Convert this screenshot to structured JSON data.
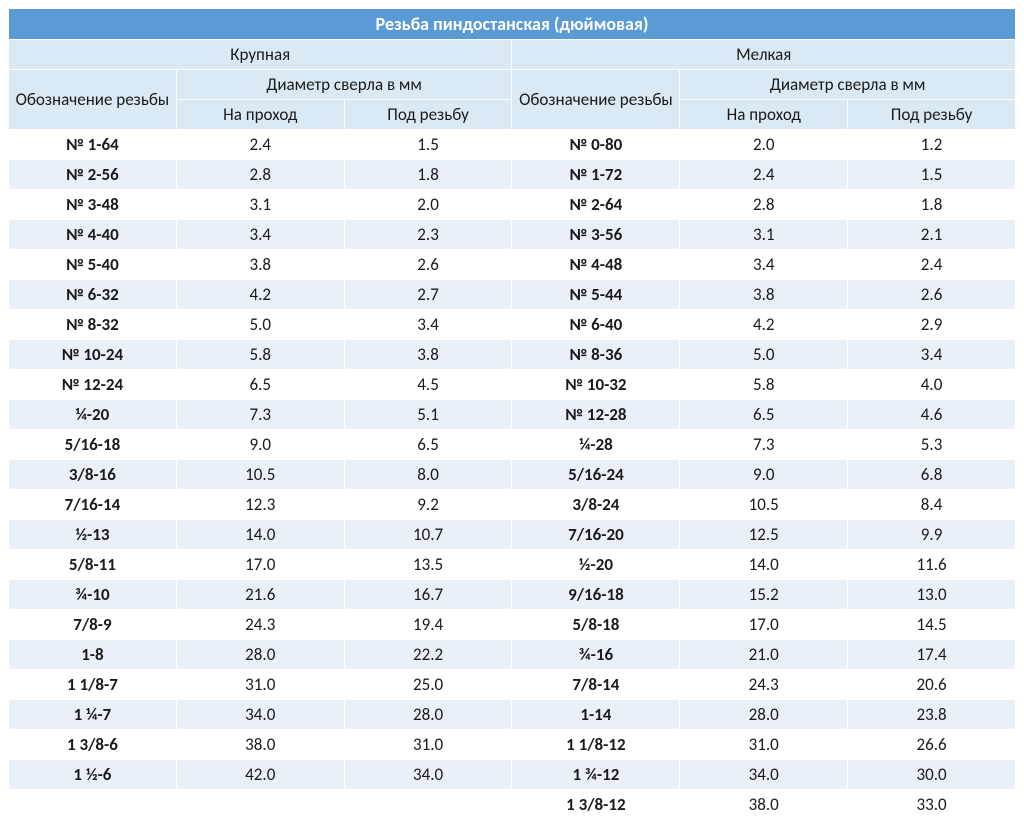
{
  "colors": {
    "title_bg": "#5b9bd5",
    "title_fg": "#ffffff",
    "header_bg": "#dae9f3",
    "row_light_bg": "#ffffff",
    "row_dark_bg": "#e9f0f8",
    "border": "#ffffff",
    "text": "#1a1a1a"
  },
  "fonts": {
    "family": "Calibri",
    "title_size_pt": 14,
    "body_size_pt": 13
  },
  "title": "Резьба пиндостанская (дюймовая)",
  "sections": {
    "left": "Крупная",
    "right": "Мелкая"
  },
  "columns": {
    "designation": "Обозначение резьбы",
    "diameter_group": "Диаметр сверла в мм",
    "through": "На проход",
    "thread": "Под резьбу"
  },
  "rows": [
    {
      "l": {
        "d": "№ 1-64",
        "t": "2.4",
        "r": "1.5"
      },
      "r": {
        "d": "№ 0-80",
        "t": "2.0",
        "r": "1.2"
      }
    },
    {
      "l": {
        "d": "№ 2-56",
        "t": "2.8",
        "r": "1.8"
      },
      "r": {
        "d": "№ 1-72",
        "t": "2.4",
        "r": "1.5"
      }
    },
    {
      "l": {
        "d": "№ 3-48",
        "t": "3.1",
        "r": "2.0"
      },
      "r": {
        "d": "№ 2-64",
        "t": "2.8",
        "r": "1.8"
      }
    },
    {
      "l": {
        "d": "№ 4-40",
        "t": "3.4",
        "r": "2.3"
      },
      "r": {
        "d": "№ 3-56",
        "t": "3.1",
        "r": "2.1"
      }
    },
    {
      "l": {
        "d": "№ 5-40",
        "t": "3.8",
        "r": "2.6"
      },
      "r": {
        "d": "№ 4-48",
        "t": "3.4",
        "r": "2.4"
      }
    },
    {
      "l": {
        "d": "№ 6-32",
        "t": "4.2",
        "r": "2.7"
      },
      "r": {
        "d": "№ 5-44",
        "t": "3.8",
        "r": "2.6"
      }
    },
    {
      "l": {
        "d": "№ 8-32",
        "t": "5.0",
        "r": "3.4"
      },
      "r": {
        "d": "№ 6-40",
        "t": "4.2",
        "r": "2.9"
      }
    },
    {
      "l": {
        "d": "№ 10-24",
        "t": "5.8",
        "r": "3.8"
      },
      "r": {
        "d": "№ 8-36",
        "t": "5.0",
        "r": "3.4"
      }
    },
    {
      "l": {
        "d": "№ 12-24",
        "t": "6.5",
        "r": "4.5"
      },
      "r": {
        "d": "№ 10-32",
        "t": "5.8",
        "r": "4.0"
      }
    },
    {
      "l": {
        "d": "¼-20",
        "t": "7.3",
        "r": "5.1"
      },
      "r": {
        "d": "№ 12-28",
        "t": "6.5",
        "r": "4.6"
      }
    },
    {
      "l": {
        "d": "5/16-18",
        "t": "9.0",
        "r": "6.5"
      },
      "r": {
        "d": "¼-28",
        "t": "7.3",
        "r": "5.3"
      }
    },
    {
      "l": {
        "d": "3/8-16",
        "t": "10.5",
        "r": "8.0"
      },
      "r": {
        "d": "5/16-24",
        "t": "9.0",
        "r": "6.8"
      }
    },
    {
      "l": {
        "d": "7/16-14",
        "t": "12.3",
        "r": "9.2"
      },
      "r": {
        "d": "3/8-24",
        "t": "10.5",
        "r": "8.4"
      }
    },
    {
      "l": {
        "d": "½-13",
        "t": "14.0",
        "r": "10.7"
      },
      "r": {
        "d": "7/16-20",
        "t": "12.5",
        "r": "9.9"
      }
    },
    {
      "l": {
        "d": "5/8-11",
        "t": "17.0",
        "r": "13.5"
      },
      "r": {
        "d": "½-20",
        "t": "14.0",
        "r": "11.6"
      }
    },
    {
      "l": {
        "d": "¾-10",
        "t": "21.6",
        "r": "16.7"
      },
      "r": {
        "d": "9/16-18",
        "t": "15.2",
        "r": "13.0"
      }
    },
    {
      "l": {
        "d": "7/8-9",
        "t": "24.3",
        "r": "19.4"
      },
      "r": {
        "d": "5/8-18",
        "t": "17.0",
        "r": "14.5"
      }
    },
    {
      "l": {
        "d": "1-8",
        "t": "28.0",
        "r": "22.2"
      },
      "r": {
        "d": "¾-16",
        "t": "21.0",
        "r": "17.4"
      }
    },
    {
      "l": {
        "d": "1 1/8-7",
        "t": "31.0",
        "r": "25.0"
      },
      "r": {
        "d": "7/8-14",
        "t": "24.3",
        "r": "20.6"
      }
    },
    {
      "l": {
        "d": "1 ¼-7",
        "t": "34.0",
        "r": "28.0"
      },
      "r": {
        "d": "1-14",
        "t": "28.0",
        "r": "23.8"
      }
    },
    {
      "l": {
        "d": "1 3/8-6",
        "t": "38.0",
        "r": "31.0"
      },
      "r": {
        "d": "1 1/8-12",
        "t": "31.0",
        "r": "26.6"
      }
    },
    {
      "l": {
        "d": "1 ½-6",
        "t": "42.0",
        "r": "34.0"
      },
      "r": {
        "d": "1 ¾-12",
        "t": "34.0",
        "r": "30.0"
      }
    },
    {
      "l": {
        "d": "",
        "t": "",
        "r": ""
      },
      "r": {
        "d": "1 3/8-12",
        "t": "38.0",
        "r": "33.0"
      }
    }
  ]
}
